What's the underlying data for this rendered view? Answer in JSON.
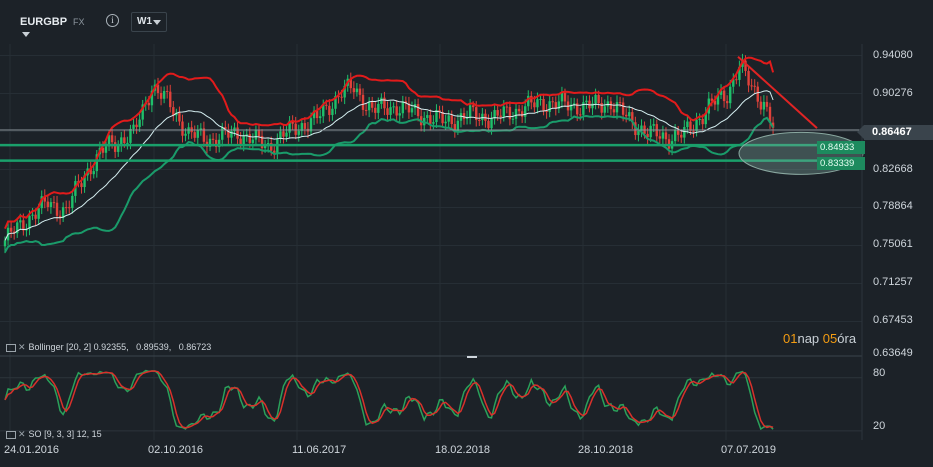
{
  "symbol": {
    "name": "EURGBP",
    "type": "FX",
    "info_icon": "info-icon",
    "timeframe": "W1"
  },
  "price_axis": {
    "ticks": [
      "0.94080",
      "0.90276",
      "0.86467",
      "0.82668",
      "0.78864",
      "0.75061",
      "0.71257",
      "0.67453",
      "0.63649"
    ],
    "current_price": "0.86467",
    "horizontal_line_labels": [
      "0.84933",
      "0.83339"
    ]
  },
  "time_axis": {
    "ticks": [
      "24.01.2016",
      "02.10.2016",
      "11.06.2017",
      "18.02.2018",
      "28.10.2018",
      "07.07.2019"
    ]
  },
  "countdown": {
    "days": "01",
    "days_unit": "nap",
    "hours": "05",
    "hours_unit": "óra"
  },
  "indicators": {
    "bollinger": {
      "icon": "panel-icon",
      "label": "Bollinger",
      "params": "[20, 2]",
      "values": "0.92355,   0.89539,   0.86723"
    },
    "stochastic": {
      "icon": "panel-icon",
      "label": "SO",
      "params": "[9, 3, 3]",
      "levels": "12, 15",
      "axis_ticks": [
        "80",
        "20"
      ]
    }
  },
  "colors": {
    "background": "#1c2228",
    "bull": "#1fbf6a",
    "bear": "#e0413a",
    "bb_upper": "#e21b1b",
    "bb_mid": "#d5eef0",
    "bb_lower": "#1a9b6a",
    "trendline": "#e02424",
    "hline": "#1aa06b",
    "ellipse": "#8aa8a0",
    "so_k": "#2aa15a",
    "so_d": "#d9312b"
  },
  "chart_data": {
    "type": "candlestick",
    "y_axis_range": [
      0.63649,
      0.9408
    ],
    "x_axis_ticks": [
      "24.01.2016",
      "02.10.2016",
      "11.06.2017",
      "18.02.2018",
      "28.10.2018",
      "07.07.2019"
    ],
    "horizontal_lines": [
      0.84933,
      0.83339
    ],
    "current_price": 0.86467,
    "bollinger_last": {
      "upper": 0.92355,
      "middle": 0.89539,
      "lower": 0.86723
    },
    "close_anchors": [
      {
        "idx": 0,
        "close": 0.752
      },
      {
        "idx": 8,
        "close": 0.776
      },
      {
        "idx": 14,
        "close": 0.79
      },
      {
        "idx": 20,
        "close": 0.782
      },
      {
        "idx": 26,
        "close": 0.82
      },
      {
        "idx": 34,
        "close": 0.85
      },
      {
        "idx": 42,
        "close": 0.86
      },
      {
        "idx": 48,
        "close": 0.91
      },
      {
        "idx": 54,
        "close": 0.89
      },
      {
        "idx": 60,
        "close": 0.86
      },
      {
        "idx": 68,
        "close": 0.855
      },
      {
        "idx": 76,
        "close": 0.862
      },
      {
        "idx": 86,
        "close": 0.848
      },
      {
        "idx": 94,
        "close": 0.866
      },
      {
        "idx": 102,
        "close": 0.876
      },
      {
        "idx": 110,
        "close": 0.904
      },
      {
        "idx": 114,
        "close": 0.907
      },
      {
        "idx": 120,
        "close": 0.885
      },
      {
        "idx": 128,
        "close": 0.889
      },
      {
        "idx": 136,
        "close": 0.88
      },
      {
        "idx": 144,
        "close": 0.873
      },
      {
        "idx": 152,
        "close": 0.88
      },
      {
        "idx": 160,
        "close": 0.877
      },
      {
        "idx": 168,
        "close": 0.886
      },
      {
        "idx": 176,
        "close": 0.893
      },
      {
        "idx": 184,
        "close": 0.89
      },
      {
        "idx": 192,
        "close": 0.889
      },
      {
        "idx": 198,
        "close": 0.893
      },
      {
        "idx": 204,
        "close": 0.875
      },
      {
        "idx": 210,
        "close": 0.862
      },
      {
        "idx": 216,
        "close": 0.857
      },
      {
        "idx": 222,
        "close": 0.86
      },
      {
        "idx": 230,
        "close": 0.888
      },
      {
        "idx": 236,
        "close": 0.902
      },
      {
        "idx": 240,
        "close": 0.93
      },
      {
        "idx": 244,
        "close": 0.908
      },
      {
        "idx": 248,
        "close": 0.893
      },
      {
        "idx": 251,
        "close": 0.867
      }
    ],
    "stochastic_range": [
      12,
      100
    ],
    "stochastic_levels": [
      80,
      20
    ]
  }
}
